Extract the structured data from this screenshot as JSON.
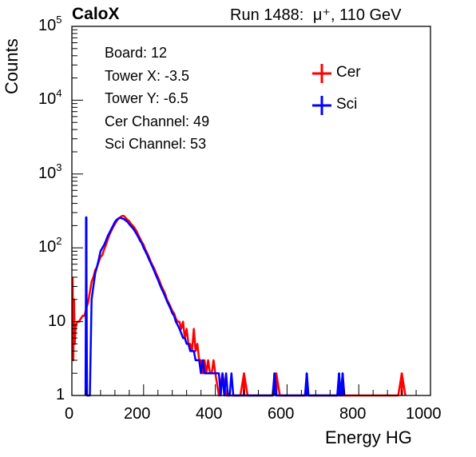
{
  "header": {
    "experiment": "CaloX",
    "run": "Run 1488:",
    "beam": "μ⁺, 110 GeV"
  },
  "info_box": {
    "lines": [
      "Board: 12",
      "Tower X: -3.5",
      "Tower Y: -6.5",
      "Cer Channel: 49",
      "Sci Channel: 53"
    ]
  },
  "colors": {
    "cer": "#ff0000",
    "sci": "#0000ff"
  },
  "chart_data": {
    "type": "line",
    "title": "",
    "xlabel": "Energy HG",
    "ylabel": "Counts",
    "xlim": [
      0,
      1000
    ],
    "ylim": [
      1,
      100000
    ],
    "yscale": "log",
    "x_ticks": [
      "0",
      "200",
      "400",
      "600",
      "800",
      "1000"
    ],
    "y_ticks": [
      {
        "base": "1",
        "exp": ""
      },
      {
        "base": "10",
        "exp": ""
      },
      {
        "base": "10",
        "exp": "2"
      },
      {
        "base": "10",
        "exp": "3"
      },
      {
        "base": "10",
        "exp": "4"
      },
      {
        "base": "10",
        "exp": "5"
      }
    ],
    "legend_position": "top-right",
    "series": [
      {
        "name": "Cer",
        "color": "#ff0000",
        "points": [
          [
            2,
            40
          ],
          [
            4,
            3
          ],
          [
            6,
            20
          ],
          [
            8,
            5
          ],
          [
            10,
            8
          ],
          [
            12,
            9
          ],
          [
            15,
            10
          ],
          [
            20,
            10
          ],
          [
            25,
            11
          ],
          [
            30,
            12
          ],
          [
            35,
            12
          ],
          [
            40,
            15
          ],
          [
            45,
            18
          ],
          [
            50,
            25
          ],
          [
            55,
            35
          ],
          [
            60,
            40
          ],
          [
            65,
            50
          ],
          [
            70,
            55
          ],
          [
            75,
            65
          ],
          [
            80,
            75
          ],
          [
            85,
            80
          ],
          [
            90,
            95
          ],
          [
            95,
            110
          ],
          [
            100,
            130
          ],
          [
            105,
            150
          ],
          [
            110,
            170
          ],
          [
            115,
            190
          ],
          [
            120,
            210
          ],
          [
            125,
            230
          ],
          [
            130,
            250
          ],
          [
            135,
            260
          ],
          [
            140,
            270
          ],
          [
            145,
            270
          ],
          [
            150,
            255
          ],
          [
            155,
            240
          ],
          [
            160,
            230
          ],
          [
            165,
            210
          ],
          [
            170,
            200
          ],
          [
            175,
            185
          ],
          [
            180,
            170
          ],
          [
            185,
            150
          ],
          [
            190,
            135
          ],
          [
            195,
            120
          ],
          [
            200,
            110
          ],
          [
            205,
            95
          ],
          [
            210,
            85
          ],
          [
            215,
            75
          ],
          [
            220,
            65
          ],
          [
            225,
            58
          ],
          [
            230,
            52
          ],
          [
            235,
            45
          ],
          [
            240,
            40
          ],
          [
            245,
            35
          ],
          [
            250,
            30
          ],
          [
            255,
            27
          ],
          [
            260,
            24
          ],
          [
            265,
            20
          ],
          [
            270,
            18
          ],
          [
            275,
            16
          ],
          [
            280,
            14
          ],
          [
            285,
            13
          ],
          [
            290,
            11
          ],
          [
            295,
            10
          ],
          [
            300,
            10
          ],
          [
            305,
            8
          ],
          [
            310,
            10
          ],
          [
            315,
            6
          ],
          [
            320,
            8
          ],
          [
            325,
            5
          ],
          [
            330,
            5
          ],
          [
            335,
            4
          ],
          [
            340,
            8
          ],
          [
            345,
            4
          ],
          [
            350,
            5
          ],
          [
            355,
            3
          ],
          [
            360,
            3
          ],
          [
            365,
            2
          ],
          [
            370,
            3
          ],
          [
            375,
            2
          ],
          [
            380,
            3
          ],
          [
            385,
            2
          ],
          [
            390,
            2
          ],
          [
            395,
            3
          ],
          [
            400,
            2
          ],
          [
            410,
            1
          ],
          [
            420,
            2
          ],
          [
            430,
            1
          ],
          [
            440,
            1
          ],
          [
            450,
            1
          ],
          [
            460,
            1
          ],
          [
            470,
            1
          ],
          [
            480,
            2
          ],
          [
            490,
            1
          ],
          [
            500,
            1
          ],
          [
            560,
            1
          ],
          [
            570,
            2
          ],
          [
            580,
            1
          ],
          [
            910,
            1
          ],
          [
            920,
            2
          ],
          [
            930,
            1
          ]
        ]
      },
      {
        "name": "Sci",
        "color": "#0000ff",
        "points": [
          [
            38,
            1
          ],
          [
            40,
            260
          ],
          [
            42,
            1
          ],
          [
            45,
            1
          ],
          [
            50,
            1
          ],
          [
            55,
            20
          ],
          [
            60,
            30
          ],
          [
            65,
            45
          ],
          [
            70,
            55
          ],
          [
            75,
            70
          ],
          [
            80,
            90
          ],
          [
            85,
            100
          ],
          [
            90,
            110
          ],
          [
            95,
            125
          ],
          [
            100,
            145
          ],
          [
            105,
            160
          ],
          [
            110,
            180
          ],
          [
            115,
            200
          ],
          [
            120,
            225
          ],
          [
            125,
            240
          ],
          [
            130,
            250
          ],
          [
            135,
            255
          ],
          [
            140,
            250
          ],
          [
            145,
            245
          ],
          [
            150,
            235
          ],
          [
            155,
            225
          ],
          [
            160,
            210
          ],
          [
            165,
            195
          ],
          [
            170,
            185
          ],
          [
            175,
            170
          ],
          [
            180,
            155
          ],
          [
            185,
            140
          ],
          [
            190,
            125
          ],
          [
            195,
            115
          ],
          [
            200,
            100
          ],
          [
            205,
            90
          ],
          [
            210,
            80
          ],
          [
            215,
            70
          ],
          [
            220,
            62
          ],
          [
            225,
            55
          ],
          [
            230,
            48
          ],
          [
            235,
            42
          ],
          [
            240,
            37
          ],
          [
            245,
            32
          ],
          [
            250,
            28
          ],
          [
            255,
            25
          ],
          [
            260,
            22
          ],
          [
            265,
            19
          ],
          [
            270,
            17
          ],
          [
            275,
            15
          ],
          [
            280,
            13
          ],
          [
            285,
            12
          ],
          [
            290,
            10
          ],
          [
            295,
            9
          ],
          [
            300,
            8
          ],
          [
            305,
            7
          ],
          [
            310,
            6
          ],
          [
            315,
            6
          ],
          [
            320,
            5
          ],
          [
            325,
            5
          ],
          [
            330,
            4
          ],
          [
            335,
            4
          ],
          [
            340,
            4
          ],
          [
            345,
            3
          ],
          [
            350,
            3
          ],
          [
            355,
            3
          ],
          [
            360,
            2
          ],
          [
            365,
            3
          ],
          [
            370,
            2
          ],
          [
            375,
            2
          ],
          [
            380,
            2
          ],
          [
            385,
            2
          ],
          [
            390,
            2
          ],
          [
            395,
            2
          ],
          [
            400,
            2
          ],
          [
            405,
            2
          ],
          [
            410,
            2
          ],
          [
            415,
            1
          ],
          [
            420,
            2
          ],
          [
            425,
            1
          ],
          [
            430,
            2
          ],
          [
            435,
            1
          ],
          [
            440,
            1
          ],
          [
            445,
            2
          ],
          [
            450,
            1
          ],
          [
            455,
            1
          ],
          [
            460,
            1
          ],
          [
            465,
            1
          ],
          [
            470,
            1
          ],
          [
            480,
            1
          ],
          [
            490,
            1
          ],
          [
            560,
            1
          ],
          [
            565,
            2
          ],
          [
            570,
            1
          ],
          [
            650,
            1
          ],
          [
            655,
            2
          ],
          [
            660,
            1
          ],
          [
            740,
            1
          ],
          [
            745,
            2
          ],
          [
            750,
            1
          ],
          [
            755,
            2
          ],
          [
            760,
            1
          ]
        ]
      }
    ]
  }
}
